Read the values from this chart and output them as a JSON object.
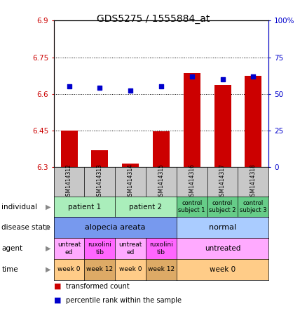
{
  "title": "GDS5275 / 1555884_at",
  "samples": [
    "GSM1414312",
    "GSM1414313",
    "GSM1414314",
    "GSM1414315",
    "GSM1414316",
    "GSM1414317",
    "GSM1414318"
  ],
  "bar_values": [
    6.45,
    6.37,
    6.315,
    6.445,
    6.685,
    6.635,
    6.675
  ],
  "bar_bottom": 6.3,
  "percentile_values": [
    55,
    54,
    52,
    55,
    62,
    60,
    62
  ],
  "ylim_left": [
    6.3,
    6.9
  ],
  "ylim_right": [
    0,
    100
  ],
  "yticks_left": [
    6.3,
    6.45,
    6.6,
    6.75,
    6.9
  ],
  "yticks_right": [
    0,
    25,
    50,
    75,
    100
  ],
  "ytick_labels_left": [
    "6.3",
    "6.45",
    "6.6",
    "6.75",
    "6.9"
  ],
  "ytick_labels_right": [
    "0",
    "25",
    "50",
    "75",
    "100%"
  ],
  "hlines": [
    6.45,
    6.6,
    6.75
  ],
  "bar_color": "#cc0000",
  "dot_color": "#0000cc",
  "left_label": "transformed count",
  "right_label": "percentile rank within the sample",
  "row_labels": [
    "individual",
    "disease state",
    "agent",
    "time"
  ],
  "individual_groups": [
    {
      "label": "patient 1",
      "start": 0,
      "end": 1,
      "color": "#aaeebb"
    },
    {
      "label": "patient 2",
      "start": 2,
      "end": 3,
      "color": "#aaeebb"
    },
    {
      "label": "control\nsubject 1",
      "start": 4,
      "end": 4,
      "color": "#66cc88"
    },
    {
      "label": "control\nsubject 2",
      "start": 5,
      "end": 5,
      "color": "#66cc88"
    },
    {
      "label": "control\nsubject 3",
      "start": 6,
      "end": 6,
      "color": "#66cc88"
    }
  ],
  "disease_groups": [
    {
      "label": "alopecia areata",
      "start": 0,
      "end": 3,
      "color": "#7799ee"
    },
    {
      "label": "normal",
      "start": 4,
      "end": 6,
      "color": "#aaccff"
    }
  ],
  "agent_groups": [
    {
      "label": "untreat\ned",
      "start": 0,
      "end": 0,
      "color": "#ffaaff"
    },
    {
      "label": "ruxolini\ntib",
      "start": 1,
      "end": 1,
      "color": "#ff66ff"
    },
    {
      "label": "untreat\ned",
      "start": 2,
      "end": 2,
      "color": "#ffaaff"
    },
    {
      "label": "ruxolini\ntib",
      "start": 3,
      "end": 3,
      "color": "#ff66ff"
    },
    {
      "label": "untreated",
      "start": 4,
      "end": 6,
      "color": "#ffaaff"
    }
  ],
  "time_groups": [
    {
      "label": "week 0",
      "start": 0,
      "end": 0,
      "color": "#ffcc88"
    },
    {
      "label": "week 12",
      "start": 1,
      "end": 1,
      "color": "#ddaa66"
    },
    {
      "label": "week 0",
      "start": 2,
      "end": 2,
      "color": "#ffcc88"
    },
    {
      "label": "week 12",
      "start": 3,
      "end": 3,
      "color": "#ddaa66"
    },
    {
      "label": "week 0",
      "start": 4,
      "end": 6,
      "color": "#ffcc88"
    }
  ]
}
